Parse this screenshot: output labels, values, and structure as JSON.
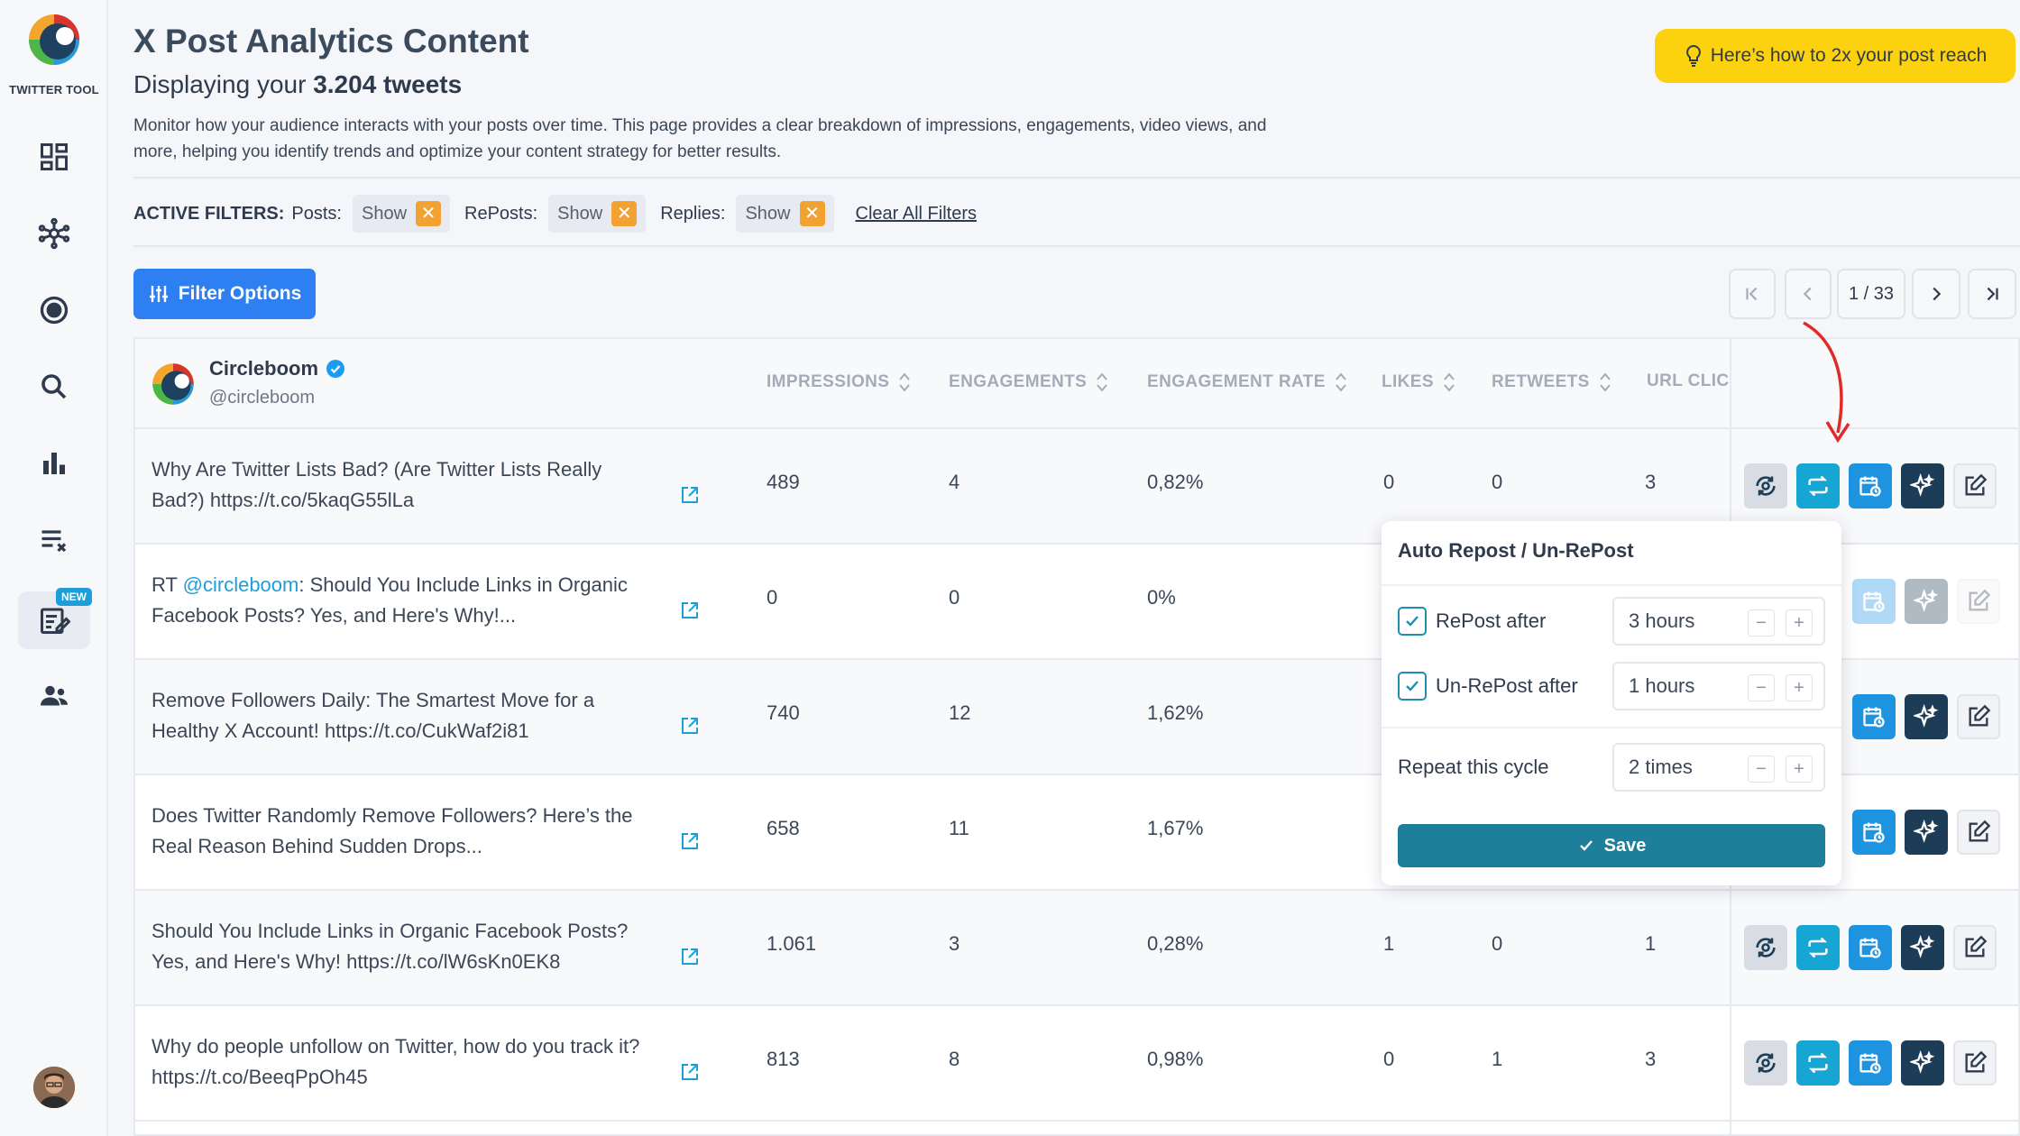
{
  "app": {
    "logo_text": "TWITTER TOOL",
    "new_badge": "NEW"
  },
  "sidebar": {
    "items": [
      {
        "name": "dashboard",
        "icon": "dashboard-icon"
      },
      {
        "name": "network",
        "icon": "network-icon"
      },
      {
        "name": "target",
        "icon": "target-icon"
      },
      {
        "name": "search",
        "icon": "search-icon"
      },
      {
        "name": "analytics",
        "icon": "bar-chart-icon"
      },
      {
        "name": "clear-list",
        "icon": "list-clear-icon"
      },
      {
        "name": "post-editor",
        "icon": "edit-note-icon",
        "active": true,
        "badge": "NEW"
      },
      {
        "name": "users",
        "icon": "users-icon"
      }
    ]
  },
  "header": {
    "title": "X Post Analytics Content",
    "subtitle_prefix": "Displaying your ",
    "subtitle_count": "3.204 tweets",
    "description": "Monitor how your audience interacts with your posts over time. This page provides a clear breakdown of impressions, engagements, video views, and more, helping you identify trends and optimize your content strategy for better results.",
    "reach_button": "Here’s how to 2x your post reach"
  },
  "filters": {
    "label": "ACTIVE FILTERS:",
    "items": [
      {
        "label": "Posts:",
        "value": "Show"
      },
      {
        "label": "RePosts:",
        "value": "Show"
      },
      {
        "label": "Replies:",
        "value": "Show"
      }
    ],
    "clear_all": "Clear All Filters",
    "filter_button": "Filter Options"
  },
  "pagination": {
    "current": "1 / 33"
  },
  "account": {
    "name": "Circleboom",
    "handle": "@circleboom"
  },
  "columns": [
    "IMPRESSIONS",
    "ENGAGEMENTS",
    "ENGAGEMENT RATE",
    "LIKES",
    "RETWEETS",
    "URL CLICI"
  ],
  "rows": [
    {
      "text": "Why Are Twitter Lists Bad? (Are Twitter Lists Really Bad?) https://t.co/5kaqG55lLa",
      "impressions": "489",
      "engagements": "4",
      "rate": "0,82%",
      "likes": "0",
      "retweets": "0",
      "url_clicks": "3"
    },
    {
      "text_prefix": "RT ",
      "mention": "@circleboom",
      "text": ": Should You Include Links in Organic Facebook Posts? Yes, and Here's Why!...",
      "impressions": "0",
      "engagements": "0",
      "rate": "0%",
      "likes": "",
      "retweets": "",
      "url_clicks": ""
    },
    {
      "text": "Remove Followers Daily: The Smartest Move for a Healthy X Account! https://t.co/CukWaf2i81",
      "impressions": "740",
      "engagements": "12",
      "rate": "1,62%",
      "likes": "",
      "retweets": "",
      "url_clicks": ""
    },
    {
      "text": "Does Twitter Randomly Remove Followers? Here’s the Real Reason Behind Sudden Drops...",
      "impressions": "658",
      "engagements": "11",
      "rate": "1,67%",
      "likes": "",
      "retweets": "",
      "url_clicks": ""
    },
    {
      "text": "Should You Include Links in Organic Facebook Posts? Yes, and Here's Why! https://t.co/lW6sKn0EK8",
      "impressions": "1.061",
      "engagements": "3",
      "rate": "0,28%",
      "likes": "1",
      "retweets": "0",
      "url_clicks": "1"
    },
    {
      "text": "Why do people unfollow on Twitter, how do you track it? https://t.co/BeeqPpOh45",
      "impressions": "813",
      "engagements": "8",
      "rate": "0,98%",
      "likes": "0",
      "retweets": "1",
      "url_clicks": "3"
    }
  ],
  "popover": {
    "title": "Auto Repost / Un-RePost",
    "repost_label": "RePost after",
    "repost_value": "3 hours",
    "unrepost_label": "Un-RePost after",
    "unrepost_value": "1 hours",
    "repeat_label": "Repeat this cycle",
    "repeat_value": "2 times",
    "minus": "−",
    "plus": "+",
    "save": "Save"
  },
  "colors": {
    "accent_blue": "#2d7ff2",
    "reach_yellow": "#fcd20e",
    "filter_x_orange": "#f2a231",
    "teal_action": "#17a5d3",
    "dark_action": "#1d3c57",
    "save_teal": "#1e7f9a",
    "arrow_red": "#e02b2b"
  }
}
